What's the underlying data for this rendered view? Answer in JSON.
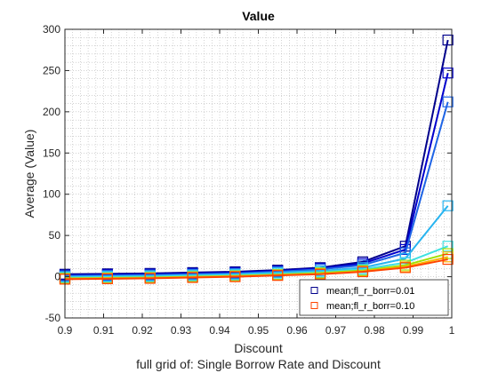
{
  "chart_data": {
    "type": "line",
    "title": "Value",
    "xlabel": "Discount",
    "ylabel": "Average (Value)",
    "subtitle": "full grid of: Single Borrow Rate and Discount",
    "xlim": [
      0.9,
      1.0
    ],
    "ylim": [
      -50,
      300
    ],
    "xticks": [
      "0.9",
      "0.91",
      "0.92",
      "0.93",
      "0.94",
      "0.95",
      "0.96",
      "0.97",
      "0.98",
      "0.99",
      "1"
    ],
    "yticks": [
      "-50",
      "0",
      "50",
      "100",
      "150",
      "200",
      "250",
      "300"
    ],
    "grid": "dotted major and minor",
    "legend_position": "bottom-right",
    "x": [
      0.9,
      0.911,
      0.922,
      0.933,
      0.944,
      0.955,
      0.966,
      0.977,
      0.988,
      0.999
    ],
    "series": [
      {
        "name": "mean;fl_r_borr=0.01",
        "color": "#00008B",
        "marker": "square",
        "in_legend": true,
        "values": [
          3,
          3.5,
          4,
          5,
          6,
          8,
          11,
          18,
          37,
          287
        ]
      },
      {
        "color": "#0000CD",
        "marker": "square",
        "values": [
          2,
          2.5,
          3,
          4,
          5,
          7,
          10,
          16,
          33,
          247
        ]
      },
      {
        "color": "#1E64E6",
        "marker": "square",
        "values": [
          1,
          1.5,
          2,
          3,
          4,
          6,
          9,
          14,
          29,
          212
        ]
      },
      {
        "color": "#28B4F0",
        "marker": "square",
        "values": [
          0,
          0.5,
          1,
          2,
          3,
          5,
          7,
          11,
          22,
          86
        ]
      },
      {
        "color": "#40E0E0",
        "marker": "square",
        "values": [
          -1,
          -0.5,
          0,
          1,
          2,
          3.5,
          5.5,
          9,
          17,
          37
        ]
      },
      {
        "color": "#A0E000",
        "marker": "square",
        "values": [
          -2,
          -1.5,
          -1,
          0,
          1,
          2.5,
          4.5,
          7.5,
          14,
          28
        ]
      },
      {
        "color": "#FFB000",
        "marker": "square",
        "values": [
          -2.5,
          -2,
          -1.5,
          -0.5,
          0.5,
          2,
          3.5,
          6.5,
          12,
          24
        ]
      },
      {
        "name": "mean;fl_r_borr=0.10",
        "color": "#FF4500",
        "marker": "square",
        "in_legend": true,
        "values": [
          -3,
          -2.5,
          -2,
          -1,
          0,
          1.5,
          3,
          6,
          11,
          21
        ]
      }
    ]
  }
}
